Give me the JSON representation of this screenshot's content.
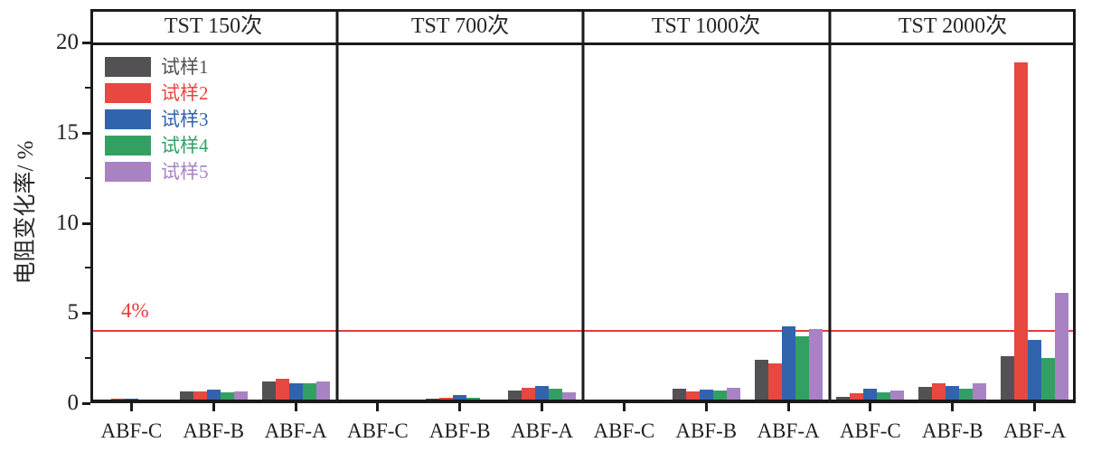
{
  "chart_data": {
    "type": "bar",
    "title": "",
    "ylabel": "电阻变化率/ %",
    "xlabel": "",
    "ylim": [
      0,
      20
    ],
    "yticks": [
      0,
      5,
      10,
      15,
      20
    ],
    "yticks_minor": [
      2.5,
      7.5,
      12.5,
      17.5
    ],
    "grid": false,
    "legend_position": "upper-left-inside-first-panel",
    "threshold": {
      "value": 4,
      "label": "4%",
      "color": "#e8393b"
    },
    "axis_color": "#1a1a1a",
    "series": [
      {
        "name": "试样1",
        "color": "#535153"
      },
      {
        "name": "试样2",
        "color": "#e74840"
      },
      {
        "name": "试样3",
        "color": "#3263ad"
      },
      {
        "name": "试样4",
        "color": "#33a063"
      },
      {
        "name": "试样5",
        "color": "#a882c3"
      }
    ],
    "categories": [
      "ABF-C",
      "ABF-B",
      "ABF-A"
    ],
    "panels": [
      {
        "title": "TST 150次",
        "groups": [
          [
            0.05,
            0.25,
            0.25,
            0.05,
            0.15
          ],
          [
            0.65,
            0.65,
            0.75,
            0.6,
            0.65
          ],
          [
            1.2,
            1.35,
            1.1,
            1.1,
            1.2
          ]
        ]
      },
      {
        "title": "TST 700次",
        "groups": [
          [
            0.2,
            0.1,
            0.15,
            0.1,
            0.1
          ],
          [
            0.25,
            0.3,
            0.45,
            0.3,
            0.1
          ],
          [
            0.7,
            0.85,
            0.95,
            0.8,
            0.6
          ]
        ]
      },
      {
        "title": "TST 1000次",
        "groups": [
          [
            0.15,
            0.1,
            0.1,
            0.1,
            0.2
          ],
          [
            0.8,
            0.65,
            0.75,
            0.7,
            0.85
          ],
          [
            2.4,
            2.2,
            4.25,
            3.7,
            4.1
          ]
        ]
      },
      {
        "title": "TST 2000次",
        "groups": [
          [
            0.35,
            0.55,
            0.8,
            0.6,
            0.72
          ],
          [
            0.9,
            1.1,
            0.95,
            0.8,
            1.1
          ],
          [
            2.6,
            18.9,
            3.5,
            2.5,
            6.1
          ]
        ]
      }
    ]
  }
}
